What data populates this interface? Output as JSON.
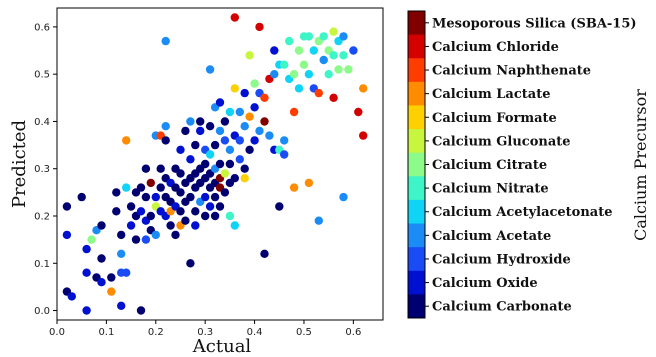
{
  "chart_data": {
    "type": "scatter",
    "xlabel": "Actual",
    "ylabel": "Predicted",
    "xlim": [
      0.0,
      0.66
    ],
    "ylim": [
      -0.02,
      0.64
    ],
    "x_ticks": [
      "0.0",
      "0.1",
      "0.2",
      "0.3",
      "0.4",
      "0.5",
      "0.6"
    ],
    "y_ticks": [
      "0.0",
      "0.1",
      "0.2",
      "0.3",
      "0.4",
      "0.5",
      "0.6"
    ],
    "colorbar_label": "Calcium Precursor",
    "categories": [
      {
        "name": "Mesoporous Silica (SBA-15)",
        "color": "#800000"
      },
      {
        "name": "Calcium Chloride",
        "color": "#d40000"
      },
      {
        "name": "Calcium Naphthenate",
        "color": "#ff3d00"
      },
      {
        "name": "Calcium Lactate",
        "color": "#ff8c00"
      },
      {
        "name": "Calcium Formate",
        "color": "#ffd000"
      },
      {
        "name": "Calcium Gluconate",
        "color": "#c8f53d"
      },
      {
        "name": "Calcium Citrate",
        "color": "#8cfb8a"
      },
      {
        "name": "Calcium Nitrate",
        "color": "#3df5c6"
      },
      {
        "name": "Calcium Acetylacetonate",
        "color": "#10d4f5"
      },
      {
        "name": "Calcium Acetate",
        "color": "#1b8cf5"
      },
      {
        "name": "Calcium Hydroxide",
        "color": "#1a4cf5"
      },
      {
        "name": "Calcium Oxide",
        "color": "#0010d0"
      },
      {
        "name": "Calcium Carbonate",
        "color": "#000070"
      }
    ],
    "points": [
      {
        "x": 0.02,
        "y": 0.22,
        "c": 12
      },
      {
        "x": 0.02,
        "y": 0.04,
        "c": 12
      },
      {
        "x": 0.03,
        "y": 0.03,
        "c": 11
      },
      {
        "x": 0.02,
        "y": 0.16,
        "c": 11
      },
      {
        "x": 0.05,
        "y": 0.24,
        "c": 12
      },
      {
        "x": 0.06,
        "y": 0.13,
        "c": 11
      },
      {
        "x": 0.06,
        "y": 0.08,
        "c": 11
      },
      {
        "x": 0.06,
        "y": 0.0,
        "c": 11
      },
      {
        "x": 0.07,
        "y": 0.15,
        "c": 6
      },
      {
        "x": 0.08,
        "y": 0.17,
        "c": 9
      },
      {
        "x": 0.08,
        "y": 0.07,
        "c": 12
      },
      {
        "x": 0.09,
        "y": 0.18,
        "c": 12
      },
      {
        "x": 0.09,
        "y": 0.11,
        "c": 12
      },
      {
        "x": 0.09,
        "y": 0.06,
        "c": 11
      },
      {
        "x": 0.11,
        "y": 0.07,
        "c": 12
      },
      {
        "x": 0.11,
        "y": 0.04,
        "c": 3
      },
      {
        "x": 0.12,
        "y": 0.21,
        "c": 12
      },
      {
        "x": 0.12,
        "y": 0.25,
        "c": 12
      },
      {
        "x": 0.13,
        "y": 0.12,
        "c": 9
      },
      {
        "x": 0.13,
        "y": 0.08,
        "c": 10
      },
      {
        "x": 0.13,
        "y": 0.01,
        "c": 11
      },
      {
        "x": 0.13,
        "y": 0.16,
        "c": 12
      },
      {
        "x": 0.14,
        "y": 0.26,
        "c": 8
      },
      {
        "x": 0.14,
        "y": 0.08,
        "c": 10
      },
      {
        "x": 0.14,
        "y": 0.36,
        "c": 3
      },
      {
        "x": 0.15,
        "y": 0.22,
        "c": 12
      },
      {
        "x": 0.15,
        "y": 0.18,
        "c": 11
      },
      {
        "x": 0.16,
        "y": 0.25,
        "c": 12
      },
      {
        "x": 0.16,
        "y": 0.15,
        "c": 12
      },
      {
        "x": 0.16,
        "y": 0.2,
        "c": 12
      },
      {
        "x": 0.17,
        "y": 0.0,
        "c": 12
      },
      {
        "x": 0.17,
        "y": 0.21,
        "c": 11
      },
      {
        "x": 0.17,
        "y": 0.26,
        "c": 12
      },
      {
        "x": 0.18,
        "y": 0.24,
        "c": 12
      },
      {
        "x": 0.18,
        "y": 0.19,
        "c": 11
      },
      {
        "x": 0.18,
        "y": 0.15,
        "c": 10
      },
      {
        "x": 0.18,
        "y": 0.3,
        "c": 12
      },
      {
        "x": 0.19,
        "y": 0.27,
        "c": 0
      },
      {
        "x": 0.19,
        "y": 0.2,
        "c": 12
      },
      {
        "x": 0.19,
        "y": 0.17,
        "c": 12
      },
      {
        "x": 0.2,
        "y": 0.37,
        "c": 9
      },
      {
        "x": 0.2,
        "y": 0.22,
        "c": 5
      },
      {
        "x": 0.2,
        "y": 0.24,
        "c": 11
      },
      {
        "x": 0.2,
        "y": 0.16,
        "c": 9
      },
      {
        "x": 0.21,
        "y": 0.3,
        "c": 12
      },
      {
        "x": 0.21,
        "y": 0.26,
        "c": 12
      },
      {
        "x": 0.21,
        "y": 0.37,
        "c": 2
      },
      {
        "x": 0.21,
        "y": 0.21,
        "c": 11
      },
      {
        "x": 0.22,
        "y": 0.57,
        "c": 9
      },
      {
        "x": 0.22,
        "y": 0.28,
        "c": 12
      },
      {
        "x": 0.22,
        "y": 0.24,
        "c": 12
      },
      {
        "x": 0.22,
        "y": 0.2,
        "c": 11
      },
      {
        "x": 0.22,
        "y": 0.36,
        "c": 12
      },
      {
        "x": 0.22,
        "y": 0.39,
        "c": 9
      },
      {
        "x": 0.23,
        "y": 0.21,
        "c": 3
      },
      {
        "x": 0.23,
        "y": 0.27,
        "c": 11
      },
      {
        "x": 0.23,
        "y": 0.23,
        "c": 12
      },
      {
        "x": 0.23,
        "y": 0.18,
        "c": 12
      },
      {
        "x": 0.24,
        "y": 0.3,
        "c": 12
      },
      {
        "x": 0.24,
        "y": 0.26,
        "c": 12
      },
      {
        "x": 0.24,
        "y": 0.22,
        "c": 11
      },
      {
        "x": 0.24,
        "y": 0.16,
        "c": 12
      },
      {
        "x": 0.25,
        "y": 0.29,
        "c": 12
      },
      {
        "x": 0.25,
        "y": 0.25,
        "c": 12
      },
      {
        "x": 0.25,
        "y": 0.21,
        "c": 12
      },
      {
        "x": 0.25,
        "y": 0.18,
        "c": 3
      },
      {
        "x": 0.25,
        "y": 0.34,
        "c": 11
      },
      {
        "x": 0.26,
        "y": 0.38,
        "c": 12
      },
      {
        "x": 0.26,
        "y": 0.27,
        "c": 12
      },
      {
        "x": 0.26,
        "y": 0.23,
        "c": 12
      },
      {
        "x": 0.26,
        "y": 0.19,
        "c": 12
      },
      {
        "x": 0.27,
        "y": 0.32,
        "c": 11
      },
      {
        "x": 0.27,
        "y": 0.28,
        "c": 12
      },
      {
        "x": 0.27,
        "y": 0.24,
        "c": 12
      },
      {
        "x": 0.27,
        "y": 0.1,
        "c": 12
      },
      {
        "x": 0.27,
        "y": 0.4,
        "c": 9
      },
      {
        "x": 0.28,
        "y": 0.29,
        "c": 12
      },
      {
        "x": 0.28,
        "y": 0.26,
        "c": 12
      },
      {
        "x": 0.28,
        "y": 0.21,
        "c": 12
      },
      {
        "x": 0.28,
        "y": 0.18,
        "c": 11
      },
      {
        "x": 0.28,
        "y": 0.35,
        "c": 12
      },
      {
        "x": 0.29,
        "y": 0.3,
        "c": 12
      },
      {
        "x": 0.29,
        "y": 0.27,
        "c": 12
      },
      {
        "x": 0.29,
        "y": 0.23,
        "c": 9
      },
      {
        "x": 0.29,
        "y": 0.4,
        "c": 12
      },
      {
        "x": 0.29,
        "y": 0.38,
        "c": 11
      },
      {
        "x": 0.3,
        "y": 0.31,
        "c": 12
      },
      {
        "x": 0.3,
        "y": 0.28,
        "c": 12
      },
      {
        "x": 0.3,
        "y": 0.24,
        "c": 11
      },
      {
        "x": 0.3,
        "y": 0.2,
        "c": 12
      },
      {
        "x": 0.3,
        "y": 0.34,
        "c": 10
      },
      {
        "x": 0.31,
        "y": 0.33,
        "c": 8
      },
      {
        "x": 0.31,
        "y": 0.29,
        "c": 12
      },
      {
        "x": 0.31,
        "y": 0.26,
        "c": 12
      },
      {
        "x": 0.31,
        "y": 0.22,
        "c": 11
      },
      {
        "x": 0.31,
        "y": 0.39,
        "c": 12
      },
      {
        "x": 0.31,
        "y": 0.51,
        "c": 9
      },
      {
        "x": 0.32,
        "y": 0.3,
        "c": 9
      },
      {
        "x": 0.32,
        "y": 0.27,
        "c": 12
      },
      {
        "x": 0.32,
        "y": 0.24,
        "c": 12
      },
      {
        "x": 0.32,
        "y": 0.2,
        "c": 12
      },
      {
        "x": 0.32,
        "y": 0.35,
        "c": 12
      },
      {
        "x": 0.32,
        "y": 0.43,
        "c": 9
      },
      {
        "x": 0.33,
        "y": 0.31,
        "c": 12
      },
      {
        "x": 0.33,
        "y": 0.28,
        "c": 0
      },
      {
        "x": 0.33,
        "y": 0.26,
        "c": 0
      },
      {
        "x": 0.33,
        "y": 0.22,
        "c": 12
      },
      {
        "x": 0.33,
        "y": 0.38,
        "c": 9
      },
      {
        "x": 0.33,
        "y": 0.44,
        "c": 11
      },
      {
        "x": 0.34,
        "y": 0.29,
        "c": 5
      },
      {
        "x": 0.34,
        "y": 0.25,
        "c": 12
      },
      {
        "x": 0.34,
        "y": 0.36,
        "c": 10
      },
      {
        "x": 0.34,
        "y": 0.4,
        "c": 12
      },
      {
        "x": 0.35,
        "y": 0.31,
        "c": 12
      },
      {
        "x": 0.35,
        "y": 0.27,
        "c": 12
      },
      {
        "x": 0.35,
        "y": 0.2,
        "c": 7
      },
      {
        "x": 0.35,
        "y": 0.34,
        "c": 9
      },
      {
        "x": 0.35,
        "y": 0.42,
        "c": 8
      },
      {
        "x": 0.36,
        "y": 0.28,
        "c": 12
      },
      {
        "x": 0.36,
        "y": 0.37,
        "c": 11
      },
      {
        "x": 0.36,
        "y": 0.47,
        "c": 4
      },
      {
        "x": 0.36,
        "y": 0.62,
        "c": 1
      },
      {
        "x": 0.36,
        "y": 0.18,
        "c": 8
      },
      {
        "x": 0.37,
        "y": 0.32,
        "c": 10
      },
      {
        "x": 0.37,
        "y": 0.36,
        "c": 10
      },
      {
        "x": 0.37,
        "y": 0.42,
        "c": 9
      },
      {
        "x": 0.38,
        "y": 0.39,
        "c": 9
      },
      {
        "x": 0.38,
        "y": 0.46,
        "c": 11
      },
      {
        "x": 0.38,
        "y": 0.3,
        "c": 12
      },
      {
        "x": 0.38,
        "y": 0.28,
        "c": 4
      },
      {
        "x": 0.39,
        "y": 0.34,
        "c": 12
      },
      {
        "x": 0.39,
        "y": 0.41,
        "c": 3
      },
      {
        "x": 0.39,
        "y": 0.54,
        "c": 5
      },
      {
        "x": 0.4,
        "y": 0.36,
        "c": 11
      },
      {
        "x": 0.4,
        "y": 0.43,
        "c": 11
      },
      {
        "x": 0.4,
        "y": 0.48,
        "c": 6
      },
      {
        "x": 0.41,
        "y": 0.6,
        "c": 1
      },
      {
        "x": 0.41,
        "y": 0.38,
        "c": 9
      },
      {
        "x": 0.41,
        "y": 0.46,
        "c": 10
      },
      {
        "x": 0.42,
        "y": 0.45,
        "c": 2
      },
      {
        "x": 0.42,
        "y": 0.12,
        "c": 12
      },
      {
        "x": 0.42,
        "y": 0.4,
        "c": 0
      },
      {
        "x": 0.43,
        "y": 0.37,
        "c": 9
      },
      {
        "x": 0.43,
        "y": 0.49,
        "c": 1
      },
      {
        "x": 0.44,
        "y": 0.34,
        "c": 11
      },
      {
        "x": 0.44,
        "y": 0.55,
        "c": 11
      },
      {
        "x": 0.44,
        "y": 0.5,
        "c": 9
      },
      {
        "x": 0.45,
        "y": 0.34,
        "c": 7
      },
      {
        "x": 0.45,
        "y": 0.22,
        "c": 12
      },
      {
        "x": 0.45,
        "y": 0.52,
        "c": 8
      },
      {
        "x": 0.46,
        "y": 0.33,
        "c": 10
      },
      {
        "x": 0.46,
        "y": 0.36,
        "c": 9
      },
      {
        "x": 0.46,
        "y": 0.52,
        "c": 7
      },
      {
        "x": 0.47,
        "y": 0.57,
        "c": 7
      },
      {
        "x": 0.47,
        "y": 0.49,
        "c": 8
      },
      {
        "x": 0.48,
        "y": 0.42,
        "c": 2
      },
      {
        "x": 0.48,
        "y": 0.5,
        "c": 6
      },
      {
        "x": 0.48,
        "y": 0.26,
        "c": 3
      },
      {
        "x": 0.49,
        "y": 0.55,
        "c": 6
      },
      {
        "x": 0.49,
        "y": 0.47,
        "c": 8
      },
      {
        "x": 0.5,
        "y": 0.58,
        "c": 7
      },
      {
        "x": 0.5,
        "y": 0.52,
        "c": 6
      },
      {
        "x": 0.51,
        "y": 0.27,
        "c": 3
      },
      {
        "x": 0.51,
        "y": 0.58,
        "c": 7
      },
      {
        "x": 0.51,
        "y": 0.5,
        "c": 8
      },
      {
        "x": 0.52,
        "y": 0.47,
        "c": 10
      },
      {
        "x": 0.52,
        "y": 0.55,
        "c": 8
      },
      {
        "x": 0.53,
        "y": 0.19,
        "c": 9
      },
      {
        "x": 0.53,
        "y": 0.46,
        "c": 2
      },
      {
        "x": 0.53,
        "y": 0.57,
        "c": 6
      },
      {
        "x": 0.54,
        "y": 0.58,
        "c": 7
      },
      {
        "x": 0.54,
        "y": 0.53,
        "c": 9
      },
      {
        "x": 0.55,
        "y": 0.55,
        "c": 6
      },
      {
        "x": 0.55,
        "y": 0.5,
        "c": 7
      },
      {
        "x": 0.56,
        "y": 0.59,
        "c": 5
      },
      {
        "x": 0.56,
        "y": 0.45,
        "c": 1
      },
      {
        "x": 0.56,
        "y": 0.54,
        "c": 7
      },
      {
        "x": 0.57,
        "y": 0.57,
        "c": 8
      },
      {
        "x": 0.57,
        "y": 0.51,
        "c": 6
      },
      {
        "x": 0.58,
        "y": 0.58,
        "c": 9
      },
      {
        "x": 0.58,
        "y": 0.54,
        "c": 7
      },
      {
        "x": 0.58,
        "y": 0.24,
        "c": 9
      },
      {
        "x": 0.59,
        "y": 0.51,
        "c": 6
      },
      {
        "x": 0.6,
        "y": 0.55,
        "c": 10
      },
      {
        "x": 0.61,
        "y": 0.42,
        "c": 1
      },
      {
        "x": 0.62,
        "y": 0.47,
        "c": 3
      },
      {
        "x": 0.62,
        "y": 0.37,
        "c": 1
      }
    ]
  }
}
